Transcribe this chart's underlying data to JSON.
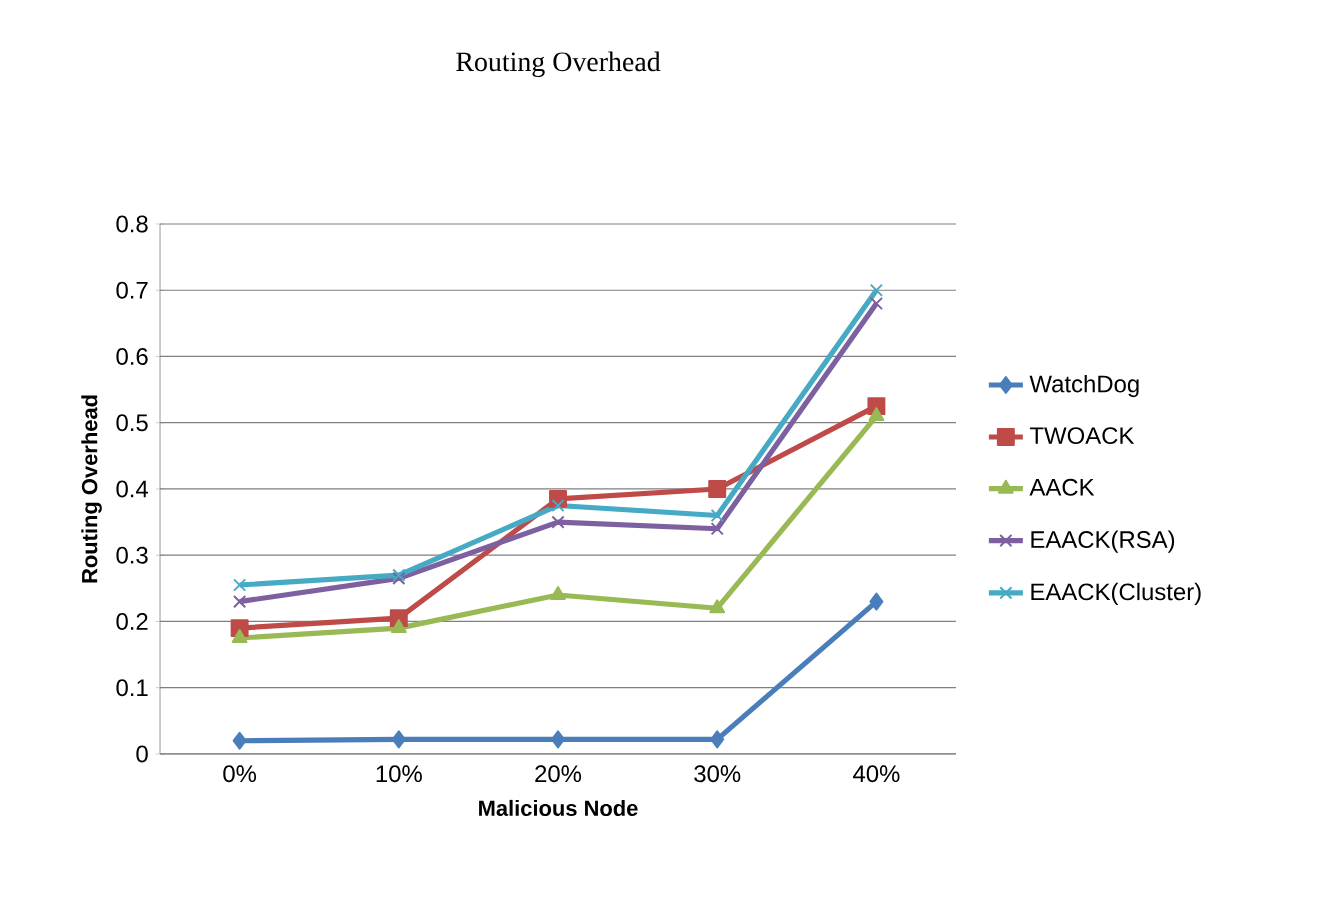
{
  "chart_data": {
    "type": "line",
    "title": "Routing Overhead",
    "xlabel": "Malicious Node",
    "ylabel": "Routing Overhead",
    "categories": [
      "0%",
      "10%",
      "20%",
      "30%",
      "40%"
    ],
    "series": [
      {
        "name": "WatchDog",
        "color": "#4a7ebb",
        "marker": "diamond",
        "values": [
          0.02,
          0.022,
          0.022,
          0.022,
          0.23
        ]
      },
      {
        "name": "TWOACK",
        "color": "#be4b48",
        "marker": "square",
        "values": [
          0.19,
          0.205,
          0.385,
          0.4,
          0.525
        ]
      },
      {
        "name": "AACK",
        "color": "#98b954",
        "marker": "triangle",
        "values": [
          0.175,
          0.19,
          0.24,
          0.22,
          0.51
        ]
      },
      {
        "name": "EAACK(RSA)",
        "color": "#7d60a0",
        "marker": "cross",
        "values": [
          0.23,
          0.265,
          0.35,
          0.34,
          0.68
        ]
      },
      {
        "name": "EAACK(Cluster)",
        "color": "#46aac5",
        "marker": "cross",
        "values": [
          0.255,
          0.27,
          0.375,
          0.36,
          0.7
        ]
      }
    ],
    "ylim": [
      0,
      0.8
    ],
    "yticks": [
      0,
      0.1,
      0.2,
      0.3,
      0.4,
      0.5,
      0.6,
      0.7,
      0.8
    ],
    "grid": "y",
    "legend": "right"
  }
}
